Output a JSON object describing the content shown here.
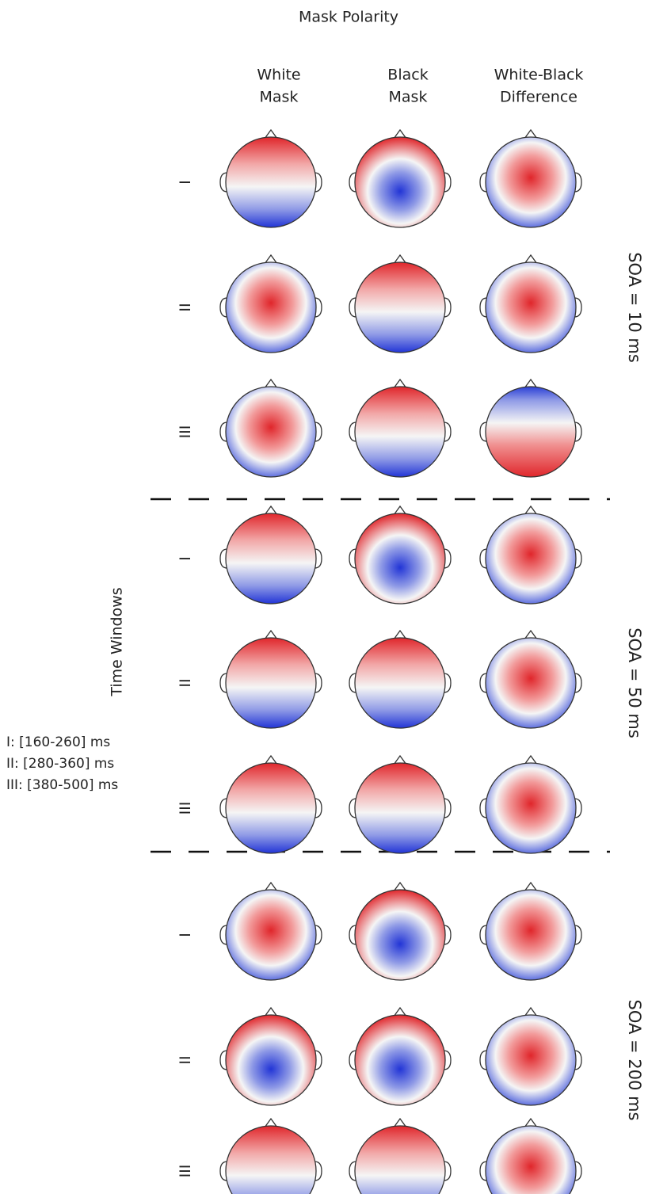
{
  "title": "Mask Polarity",
  "columns": [
    [
      "White",
      "Mask"
    ],
    [
      "Black",
      "Mask"
    ],
    [
      "White-Black",
      "Difference"
    ]
  ],
  "row_labels": [
    "I",
    "II",
    "III"
  ],
  "groups": [
    "SOA = 10 ms",
    "SOA = 50 ms",
    "SOA = 200 ms"
  ],
  "axis_title": "Time Windows",
  "legend": [
    "I: [160-260] ms",
    "II: [280-360] ms",
    "III: [380-500] ms"
  ]
}
